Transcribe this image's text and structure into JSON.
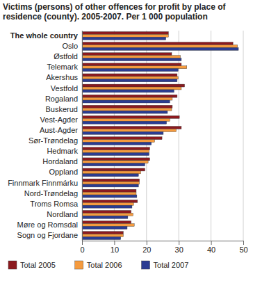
{
  "chart_data": {
    "type": "bar",
    "orientation": "horizontal",
    "title": "Victims (persons) of other offences for profit by place of residence (county). 2005-2007. Per 1 000 population",
    "categories": [
      "The whole country",
      "Oslo",
      "Østfold",
      "Telemark",
      "Akershus",
      "Vestfold",
      "Rogaland",
      "Buskerud",
      "Vest-Agder",
      "Aust-Agder",
      "Sør-Trøndelag",
      "Hedmark",
      "Hordaland",
      "Oppland",
      "Finnmark Finnmárku",
      "Nord-Trøndelag",
      "Troms Romsa",
      "Nordland",
      "Møre og Romsdal",
      "Sogn og Fjordane"
    ],
    "series": [
      {
        "name": "Total 2005",
        "color": "#8c1a1f",
        "values": [
          26.8,
          46.8,
          27.8,
          30.8,
          29.5,
          31.8,
          29.5,
          28.0,
          30.2,
          30.8,
          24.8,
          21.0,
          21.0,
          19.5,
          17.8,
          16.8,
          17.2,
          15.2,
          15.2,
          12.8
        ]
      },
      {
        "name": "Total 2006",
        "color": "#f59b3f",
        "values": [
          26.8,
          48.2,
          30.5,
          32.5,
          29.8,
          30.8,
          28.0,
          27.8,
          27.2,
          29.2,
          22.5,
          20.8,
          20.5,
          18.2,
          17.8,
          16.8,
          16.0,
          15.8,
          16.2,
          12.8
        ]
      },
      {
        "name": "Total 2007",
        "color": "#2b3c92",
        "values": [
          26.0,
          48.5,
          30.8,
          29.8,
          29.5,
          28.5,
          27.2,
          26.5,
          26.2,
          25.2,
          21.5,
          20.8,
          19.5,
          17.5,
          17.5,
          17.0,
          15.5,
          14.2,
          14.0,
          12.0
        ]
      }
    ],
    "xlim": [
      0,
      50
    ],
    "xticks": [
      0,
      10,
      20,
      30,
      40,
      50
    ],
    "grid": true,
    "legend": "bottom"
  }
}
